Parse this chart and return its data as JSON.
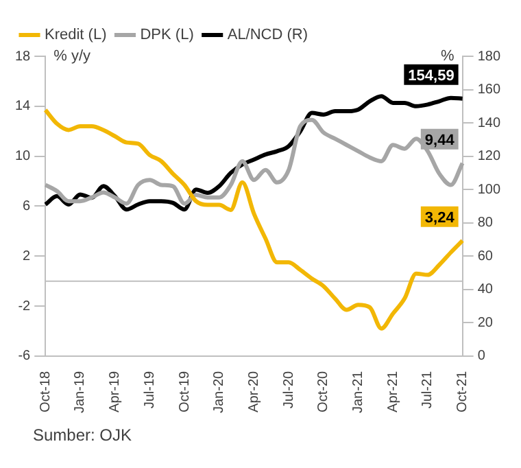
{
  "chart_data": {
    "type": "line",
    "categories": [
      "Oct-18",
      null,
      null,
      "Jan-19",
      null,
      null,
      "Apr-19",
      null,
      null,
      "Jul-19",
      null,
      null,
      "Oct-19",
      null,
      null,
      "Jan-20",
      null,
      null,
      "Apr-20",
      null,
      null,
      "Jul-20",
      null,
      null,
      "Oct-20",
      null,
      null,
      "Jan-21",
      null,
      null,
      "Apr-21",
      null,
      null,
      "Jul-21",
      null,
      null,
      "Oct-21"
    ],
    "series": [
      {
        "name": "Kredit (L)",
        "color": "#f2b705",
        "values": [
          13.7,
          12.6,
          12.1,
          12.4,
          12.4,
          12.1,
          11.6,
          11.1,
          11.0,
          10.1,
          9.6,
          8.6,
          7.7,
          6.4,
          6.1,
          6.1,
          5.7,
          7.9,
          5.4,
          3.4,
          1.5,
          1.5,
          0.9,
          0.2,
          -0.4,
          -1.4,
          -2.3,
          -1.9,
          -2.1,
          -3.8,
          -2.6,
          -1.4,
          0.6,
          0.5,
          1.3,
          2.3,
          3.24
        ],
        "value_labels": [
          null,
          null,
          null,
          null,
          null,
          null,
          null,
          null,
          null,
          null,
          null,
          null,
          null,
          null,
          null,
          null,
          null,
          null,
          null,
          null,
          null,
          null,
          null,
          null,
          null,
          null,
          null,
          null,
          null,
          null,
          null,
          null,
          null,
          null,
          null,
          null,
          "3,24"
        ]
      },
      {
        "name": "DPK (L)",
        "color": "#a6a6a6",
        "values": [
          7.7,
          7.2,
          6.4,
          6.4,
          6.7,
          7.1,
          6.7,
          6.2,
          7.7,
          8.1,
          7.7,
          7.6,
          6.2,
          6.9,
          6.7,
          6.7,
          7.7,
          9.6,
          8.1,
          8.9,
          7.9,
          8.9,
          12.4,
          12.9,
          11.9,
          11.4,
          10.9,
          10.4,
          9.9,
          9.6,
          10.9,
          10.6,
          11.4,
          10.4,
          8.6,
          7.7,
          9.44
        ],
        "value_labels": [
          null,
          null,
          null,
          null,
          null,
          null,
          null,
          null,
          null,
          null,
          null,
          null,
          null,
          null,
          null,
          null,
          null,
          null,
          null,
          null,
          null,
          null,
          null,
          null,
          null,
          null,
          null,
          null,
          null,
          null,
          null,
          null,
          null,
          null,
          null,
          null,
          "9,44"
        ]
      },
      {
        "name": "AL/NCD (R)",
        "color": "#000000",
        "axis": "y2",
        "values": [
          91,
          96,
          91,
          97,
          95,
          102,
          96,
          88,
          91,
          93,
          93,
          92,
          88,
          100,
          98,
          102,
          110,
          115,
          118,
          121,
          123,
          126,
          135,
          146,
          145,
          147,
          147,
          148,
          153,
          156,
          152,
          152,
          150,
          151,
          153,
          155,
          154.59
        ],
        "value_labels": [
          null,
          null,
          null,
          null,
          null,
          null,
          null,
          null,
          null,
          null,
          null,
          null,
          null,
          null,
          null,
          null,
          null,
          null,
          null,
          null,
          null,
          null,
          null,
          null,
          null,
          null,
          null,
          null,
          null,
          null,
          null,
          null,
          null,
          null,
          null,
          null,
          "154,59"
        ]
      }
    ],
    "ylabel": "% y/y",
    "y2label": "%",
    "ylim": [
      -6,
      18
    ],
    "yticks": [
      -6,
      -2,
      2,
      6,
      10,
      14,
      18
    ],
    "y2lim": [
      0,
      180
    ],
    "y2ticks": [
      0,
      20,
      40,
      60,
      80,
      100,
      120,
      140,
      160,
      180
    ],
    "ref_lines": [
      {
        "axis": "y",
        "value": 0,
        "color": "#bfbfbf"
      }
    ],
    "grid": false,
    "legend": "top left",
    "annotations": [
      "Sumber: OJK"
    ]
  }
}
